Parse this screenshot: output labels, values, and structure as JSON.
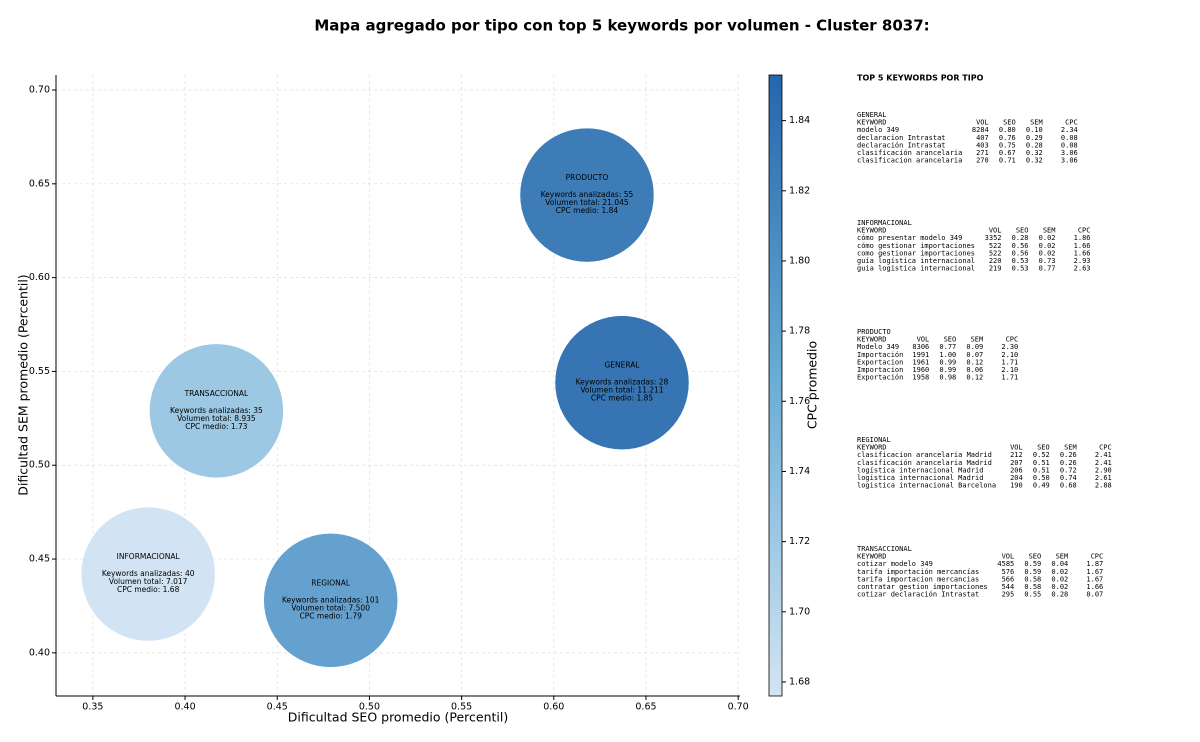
{
  "chart_data": {
    "type": "scatter",
    "title": "Mapa agregado por tipo con top 5 keywords por volumen - Cluster 8037:",
    "xlabel": "Dificultad SEO promedio (Percentil)",
    "ylabel": "Dificultad SEM promedio (Percentil)",
    "colorbar_label": "CPC promedio",
    "xlim": [
      0.33,
      0.701
    ],
    "ylim": [
      0.377,
      0.708
    ],
    "clim": [
      1.676,
      1.853
    ],
    "xticks": [
      0.35,
      {
        "value": 0.4,
        "label": "0.40"
      },
      0.45,
      {
        "value": 0.5,
        "label": "0.50"
      },
      0.55,
      {
        "value": 0.6,
        "label": "0.60"
      },
      0.65,
      {
        "value": 0.7,
        "label": "0.70"
      }
    ],
    "yticks": [
      {
        "value": 0.4,
        "label": "0.40"
      },
      0.45,
      {
        "value": 0.5,
        "label": "0.50"
      },
      0.55,
      {
        "value": 0.6,
        "label": "0.60"
      },
      0.65,
      {
        "value": 0.7,
        "label": "0.70"
      }
    ],
    "cticks": [
      1.68,
      {
        "value": 1.7,
        "label": "1.70"
      },
      1.72,
      1.74,
      1.76,
      1.78,
      {
        "value": 1.8,
        "label": "1.80"
      },
      1.82,
      1.84
    ],
    "grid": true,
    "colormap": [
      "#d3e4f3",
      "#6baed6",
      "#2466ac"
    ],
    "points": [
      {
        "name": "PRODUCTO",
        "x": 0.618,
        "y": 0.644,
        "cpc": 1.84,
        "lines": [
          "Keywords analizadas: 55",
          "Volumen total: 21.045",
          "CPC medio: 1.84"
        ]
      },
      {
        "name": "GENERAL",
        "x": 0.637,
        "y": 0.544,
        "cpc": 1.85,
        "lines": [
          "Keywords analizadas: 28",
          "Volumen total: 11.211",
          "CPC medio: 1.85"
        ]
      },
      {
        "name": "TRANSACCIONAL",
        "x": 0.417,
        "y": 0.529,
        "cpc": 1.73,
        "lines": [
          "Keywords analizadas: 35",
          "Volumen total: 8.935",
          "CPC medio: 1.73"
        ]
      },
      {
        "name": "INFORMACIONAL",
        "x": 0.38,
        "y": 0.442,
        "cpc": 1.68,
        "lines": [
          "Keywords analizadas: 40",
          "Volumen total: 7.017",
          "CPC medio: 1.68"
        ]
      },
      {
        "name": "REGIONAL",
        "x": 0.479,
        "y": 0.428,
        "cpc": 1.79,
        "lines": [
          "Keywords analizadas: 101",
          "Volumen total: 7.500",
          "CPC medio: 1.79"
        ]
      }
    ]
  },
  "keyword_panel": {
    "title": "TOP 5 KEYWORDS POR TIPO",
    "columns": [
      "KEYWORD",
      "VOL",
      "SEO",
      "SEM",
      "CPC"
    ],
    "groups": [
      {
        "name": "GENERAL",
        "rows": [
          [
            "modelo 349",
            8284,
            "0.80",
            "0.10",
            "2.34"
          ],
          [
            "declaracion Intrastat",
            407,
            "0.76",
            "0.29",
            "0.08"
          ],
          [
            "declaración Intrastat",
            403,
            "0.75",
            "0.28",
            "0.08"
          ],
          [
            "clasificación arancelaria",
            271,
            "0.67",
            "0.32",
            "3.06"
          ],
          [
            "clasificacion arancelaria",
            270,
            "0.71",
            "0.32",
            "3.06"
          ]
        ]
      },
      {
        "name": "INFORMACIONAL",
        "rows": [
          [
            "cómo presentar modelo 349",
            3352,
            "0.28",
            "0.02",
            "1.86"
          ],
          [
            "cómo gestionar importaciones",
            522,
            "0.56",
            "0.02",
            "1.66"
          ],
          [
            "como gestionar importaciones",
            522,
            "0.56",
            "0.02",
            "1.66"
          ],
          [
            "guía logística internacional",
            220,
            "0.53",
            "0.73",
            "2.93"
          ],
          [
            "guia logistica internacional",
            219,
            "0.53",
            "0.77",
            "2.63"
          ]
        ]
      },
      {
        "name": "PRODUCTO",
        "rows": [
          [
            "Modelo 349",
            8306,
            "0.77",
            "0.09",
            "2.30"
          ],
          [
            "Importación",
            1991,
            "1.00",
            "0.07",
            "2.10"
          ],
          [
            "Exportacion",
            1961,
            "0.99",
            "0.12",
            "1.71"
          ],
          [
            "Importacion",
            1960,
            "0.99",
            "0.06",
            "2.10"
          ],
          [
            "Exportación",
            1958,
            "0.98",
            "0.12",
            "1.71"
          ]
        ]
      },
      {
        "name": "REGIONAL",
        "rows": [
          [
            "clasificacion arancelaria Madrid",
            212,
            "0.52",
            "0.26",
            "2.41"
          ],
          [
            "clasificación arancelaria Madrid",
            207,
            "0.51",
            "0.26",
            "2.41"
          ],
          [
            "logística internacional Madrid",
            206,
            "0.51",
            "0.72",
            "2.90"
          ],
          [
            "logistica internacional Madrid",
            204,
            "0.50",
            "0.74",
            "2.61"
          ],
          [
            "logistica internacional Barcelona",
            190,
            "0.49",
            "0.68",
            "2.88"
          ]
        ]
      },
      {
        "name": "TRANSACCIONAL",
        "rows": [
          [
            "cotizar modelo 349",
            4585,
            "0.59",
            "0.04",
            "1.87"
          ],
          [
            "tarifa importación mercancías",
            576,
            "0.59",
            "0.02",
            "1.67"
          ],
          [
            "tarifa importacion mercancias",
            566,
            "0.58",
            "0.02",
            "1.67"
          ],
          [
            "contratar gestion importaciones",
            544,
            "0.58",
            "0.02",
            "1.66"
          ],
          [
            "cotizar declaración Intrastat",
            295,
            "0.55",
            "0.28",
            "0.07"
          ]
        ]
      }
    ]
  }
}
